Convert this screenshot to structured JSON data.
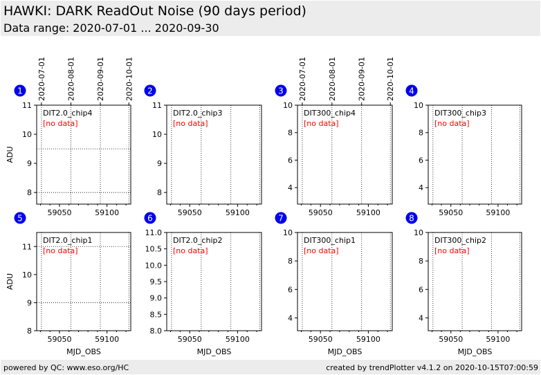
{
  "header": {
    "title": "HAWKI: DARK ReadOut Noise (90 days period)",
    "subtitle": "Data range: 2020-07-01 ... 2020-09-30"
  },
  "footer": {
    "left": "powered by QC: www.eso.org/HC",
    "right": "created by trendPlotter v4.1.2 on 2020-10-15T07:00:59"
  },
  "colors": {
    "badge": "#0000ee",
    "no_data": "#ff0000",
    "header_bg": "#ececec"
  },
  "chart_data": [
    {
      "type": "scatter",
      "panel_number": "1",
      "label": "DIT2.0_chip4",
      "status": "[no data]",
      "xlabel": "",
      "ylabel": "ADU",
      "xlim": [
        59026,
        59125
      ],
      "ylim": [
        7.6,
        11
      ],
      "yticks": [
        8,
        9,
        10,
        11
      ],
      "xticks": [
        59050,
        59100
      ],
      "date_ticks": [
        {
          "label": "2020-07-01",
          "mjd": 59031
        },
        {
          "label": "2020-08-01",
          "mjd": 59062
        },
        {
          "label": "2020-09-01",
          "mjd": 59093
        },
        {
          "label": "2020-10-01",
          "mjd": 59123
        }
      ],
      "hlines": [
        8,
        9.5
      ],
      "vlines": [
        59031,
        59062,
        59093,
        59123
      ],
      "series": []
    },
    {
      "type": "scatter",
      "panel_number": "2",
      "label": "DIT2.0_chip3",
      "status": "[no data]",
      "xlabel": "",
      "ylabel": "",
      "xlim": [
        59026,
        59125
      ],
      "ylim": [
        7.6,
        11
      ],
      "yticks": [
        8,
        9,
        10,
        11
      ],
      "xticks": [
        59050,
        59100
      ],
      "date_ticks": [],
      "hlines": [],
      "vlines": [
        59031,
        59062,
        59093,
        59123
      ],
      "series": []
    },
    {
      "type": "scatter",
      "panel_number": "3",
      "label": "DIT300_chip4",
      "status": "[no data]",
      "xlabel": "",
      "ylabel": "",
      "xlim": [
        59026,
        59125
      ],
      "ylim": [
        2.8,
        10
      ],
      "yticks": [
        4,
        6,
        8,
        10
      ],
      "xticks": [
        59050,
        59100
      ],
      "date_ticks": [
        {
          "label": "2020-07-01",
          "mjd": 59031
        },
        {
          "label": "2020-08-01",
          "mjd": 59062
        },
        {
          "label": "2020-09-01",
          "mjd": 59093
        },
        {
          "label": "2020-10-01",
          "mjd": 59123
        }
      ],
      "hlines": [],
      "vlines": [
        59031,
        59062,
        59093,
        59123
      ],
      "series": []
    },
    {
      "type": "scatter",
      "panel_number": "4",
      "label": "DIT300_chip3",
      "status": "[no data]",
      "xlabel": "",
      "ylabel": "",
      "xlim": [
        59026,
        59125
      ],
      "ylim": [
        2.8,
        10
      ],
      "yticks": [
        4,
        6,
        8,
        10
      ],
      "xticks": [
        59050,
        59100
      ],
      "date_ticks": [],
      "hlines": [],
      "vlines": [
        59031,
        59062,
        59093,
        59123
      ],
      "series": []
    },
    {
      "type": "scatter",
      "panel_number": "5",
      "label": "DIT2.0_chip1",
      "status": "[no data]",
      "xlabel": "MJD_OBS",
      "ylabel": "ADU",
      "xlim": [
        59026,
        59125
      ],
      "ylim": [
        8,
        11.5
      ],
      "yticks": [
        8,
        9,
        10,
        11
      ],
      "xticks": [
        59050,
        59100
      ],
      "date_ticks": [],
      "hlines": [
        9,
        11
      ],
      "vlines": [
        59031,
        59062,
        59093,
        59123
      ],
      "series": []
    },
    {
      "type": "scatter",
      "panel_number": "6",
      "label": "DIT2.0_chip2",
      "status": "[no data]",
      "xlabel": "MJD_OBS",
      "ylabel": "",
      "xlim": [
        59026,
        59125
      ],
      "ylim": [
        8,
        11
      ],
      "yticks": [
        8.0,
        8.5,
        9.0,
        9.5,
        10.0,
        10.5,
        11.0
      ],
      "ytick_decimals": 1,
      "xticks": [
        59050,
        59100
      ],
      "date_ticks": [],
      "hlines": [],
      "vlines": [
        59031,
        59062,
        59093,
        59123
      ],
      "series": []
    },
    {
      "type": "scatter",
      "panel_number": "7",
      "label": "DIT300_chip1",
      "status": "[no data]",
      "xlabel": "MJD_OBS",
      "ylabel": "",
      "xlim": [
        59026,
        59125
      ],
      "ylim": [
        3.1,
        10
      ],
      "yticks": [
        4,
        6,
        8,
        10
      ],
      "xticks": [
        59050,
        59100
      ],
      "date_ticks": [],
      "hlines": [],
      "vlines": [
        59031,
        59062,
        59093,
        59123
      ],
      "series": []
    },
    {
      "type": "scatter",
      "panel_number": "8",
      "label": "DIT300_chip2",
      "status": "[no data]",
      "xlabel": "MJD_OBS",
      "ylabel": "",
      "xlim": [
        59026,
        59125
      ],
      "ylim": [
        3.1,
        10
      ],
      "yticks": [
        4,
        6,
        8,
        10
      ],
      "xticks": [
        59050,
        59100
      ],
      "date_ticks": [],
      "hlines": [],
      "vlines": [
        59031,
        59062,
        59093,
        59123
      ],
      "series": []
    }
  ]
}
